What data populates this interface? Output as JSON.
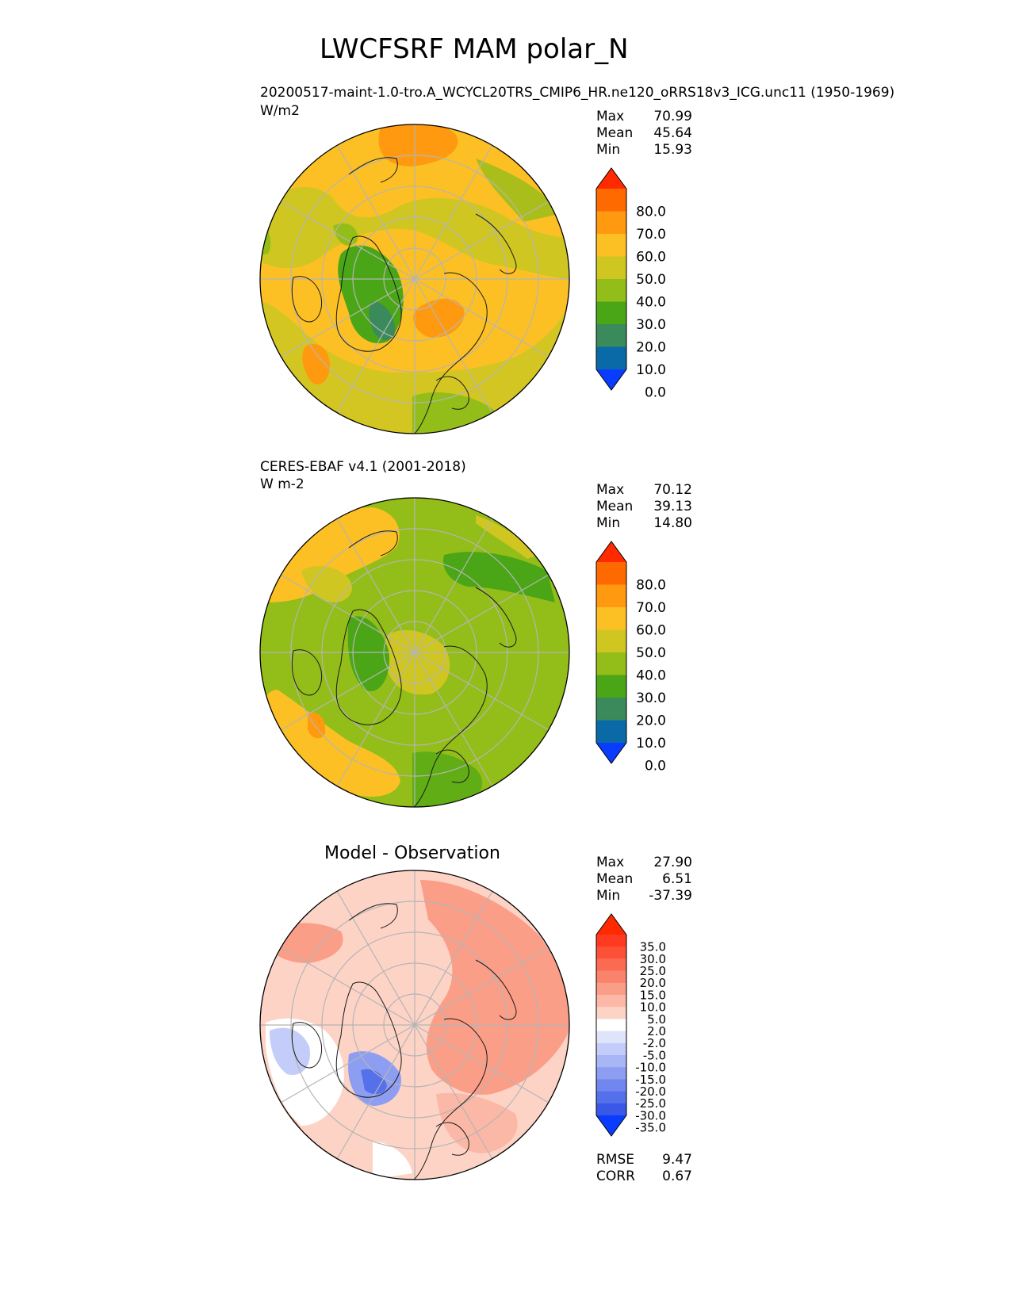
{
  "figure": {
    "title": "LWCFSRF MAM polar_N"
  },
  "chart_data": [
    {
      "type": "heatmap",
      "projection": "north-polar-stereographic",
      "title": "20200517-maint-1.0-tro.A_WCYCL20TRS_CMIP6_HR.ne120_oRRS18v3_ICG.unc11 (1950-1969)",
      "units": "W/m2",
      "stats": [
        {
          "label": "Max",
          "value": "70.99"
        },
        {
          "label": "Mean",
          "value": "45.64"
        },
        {
          "label": "Min",
          "value": "15.93"
        }
      ],
      "colorbar": {
        "ticks": [
          "80.0",
          "70.0",
          "60.0",
          "50.0",
          "40.0",
          "30.0",
          "20.0",
          "10.0",
          "0.0"
        ],
        "colors": [
          "#ff2a00",
          "#ff6a00",
          "#ff9a10",
          "#fcc024",
          "#cfc622",
          "#93bd18",
          "#4aa616",
          "#3a8a5c",
          "#0a6aa8",
          "#0a3cff"
        ],
        "extend": "both"
      }
    },
    {
      "type": "heatmap",
      "projection": "north-polar-stereographic",
      "title": "CERES-EBAF v4.1 (2001-2018)",
      "units": "W m-2",
      "stats": [
        {
          "label": "Max",
          "value": "70.12"
        },
        {
          "label": "Mean",
          "value": "39.13"
        },
        {
          "label": "Min",
          "value": "14.80"
        }
      ],
      "colorbar": {
        "ticks": [
          "80.0",
          "70.0",
          "60.0",
          "50.0",
          "40.0",
          "30.0",
          "20.0",
          "10.0",
          "0.0"
        ],
        "colors": [
          "#ff2a00",
          "#ff6a00",
          "#ff9a10",
          "#fcc024",
          "#cfc622",
          "#93bd18",
          "#4aa616",
          "#3a8a5c",
          "#0a6aa8",
          "#0a3cff"
        ],
        "extend": "both"
      }
    },
    {
      "type": "heatmap",
      "projection": "north-polar-stereographic",
      "title": "Model - Observation",
      "units": "",
      "stats": [
        {
          "label": "Max",
          "value": "27.90"
        },
        {
          "label": "Mean",
          "value": "6.51"
        },
        {
          "label": "Min",
          "value": "-37.39"
        }
      ],
      "metrics": [
        {
          "label": "RMSE",
          "value": "9.47"
        },
        {
          "label": "CORR",
          "value": "0.67"
        }
      ],
      "colorbar": {
        "ticks": [
          "35.0",
          "30.0",
          "25.0",
          "20.0",
          "15.0",
          "10.0",
          "5.0",
          "2.0",
          "-2.0",
          "-5.0",
          "-10.0",
          "-15.0",
          "-20.0",
          "-25.0",
          "-30.0",
          "-35.0"
        ],
        "colors": [
          "#ff2a00",
          "#ff3a20",
          "#fd5038",
          "#fb6b52",
          "#fa846b",
          "#fb9e88",
          "#fcb8a6",
          "#fdd3c6",
          "#ffffff",
          "#dfe4fb",
          "#c4cdf9",
          "#a9b6f6",
          "#8d9ef2",
          "#7186ee",
          "#5570eb",
          "#3a58e8",
          "#0a3cff"
        ],
        "extend": "both"
      }
    }
  ]
}
